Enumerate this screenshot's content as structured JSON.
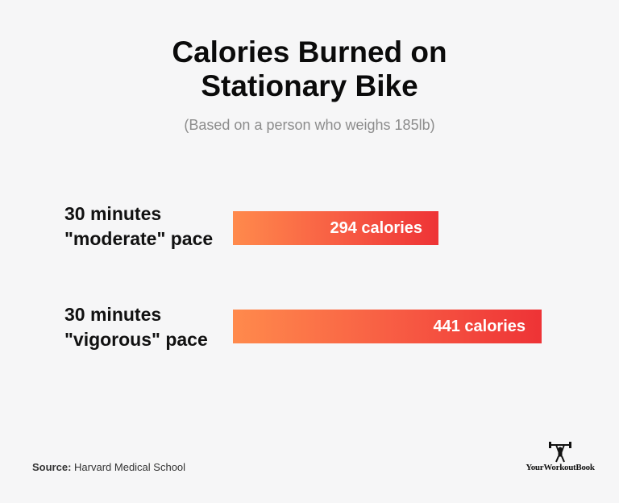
{
  "title_line1": "Calories Burned on",
  "title_line2": "Stationary Bike",
  "subtitle": "(Based on a person who weighs 185lb)",
  "chart_data": {
    "type": "bar",
    "orientation": "horizontal",
    "categories": [
      [
        "30 minutes",
        "\"moderate\" pace"
      ],
      [
        "30 minutes",
        "\"vigorous\" pace"
      ]
    ],
    "values": [
      294,
      441
    ],
    "value_labels": [
      "294 calories",
      "441 calories"
    ],
    "xlim": [
      0,
      441
    ],
    "grid": false,
    "bar_color_start": "#ff8a4c",
    "bar_color_end": "#ee3336"
  },
  "source_label": "Source:",
  "source_text": "Harvard Medical School",
  "logo_text": "YourWorkoutBook",
  "logo_icon": "person-lifting-barbell-icon"
}
